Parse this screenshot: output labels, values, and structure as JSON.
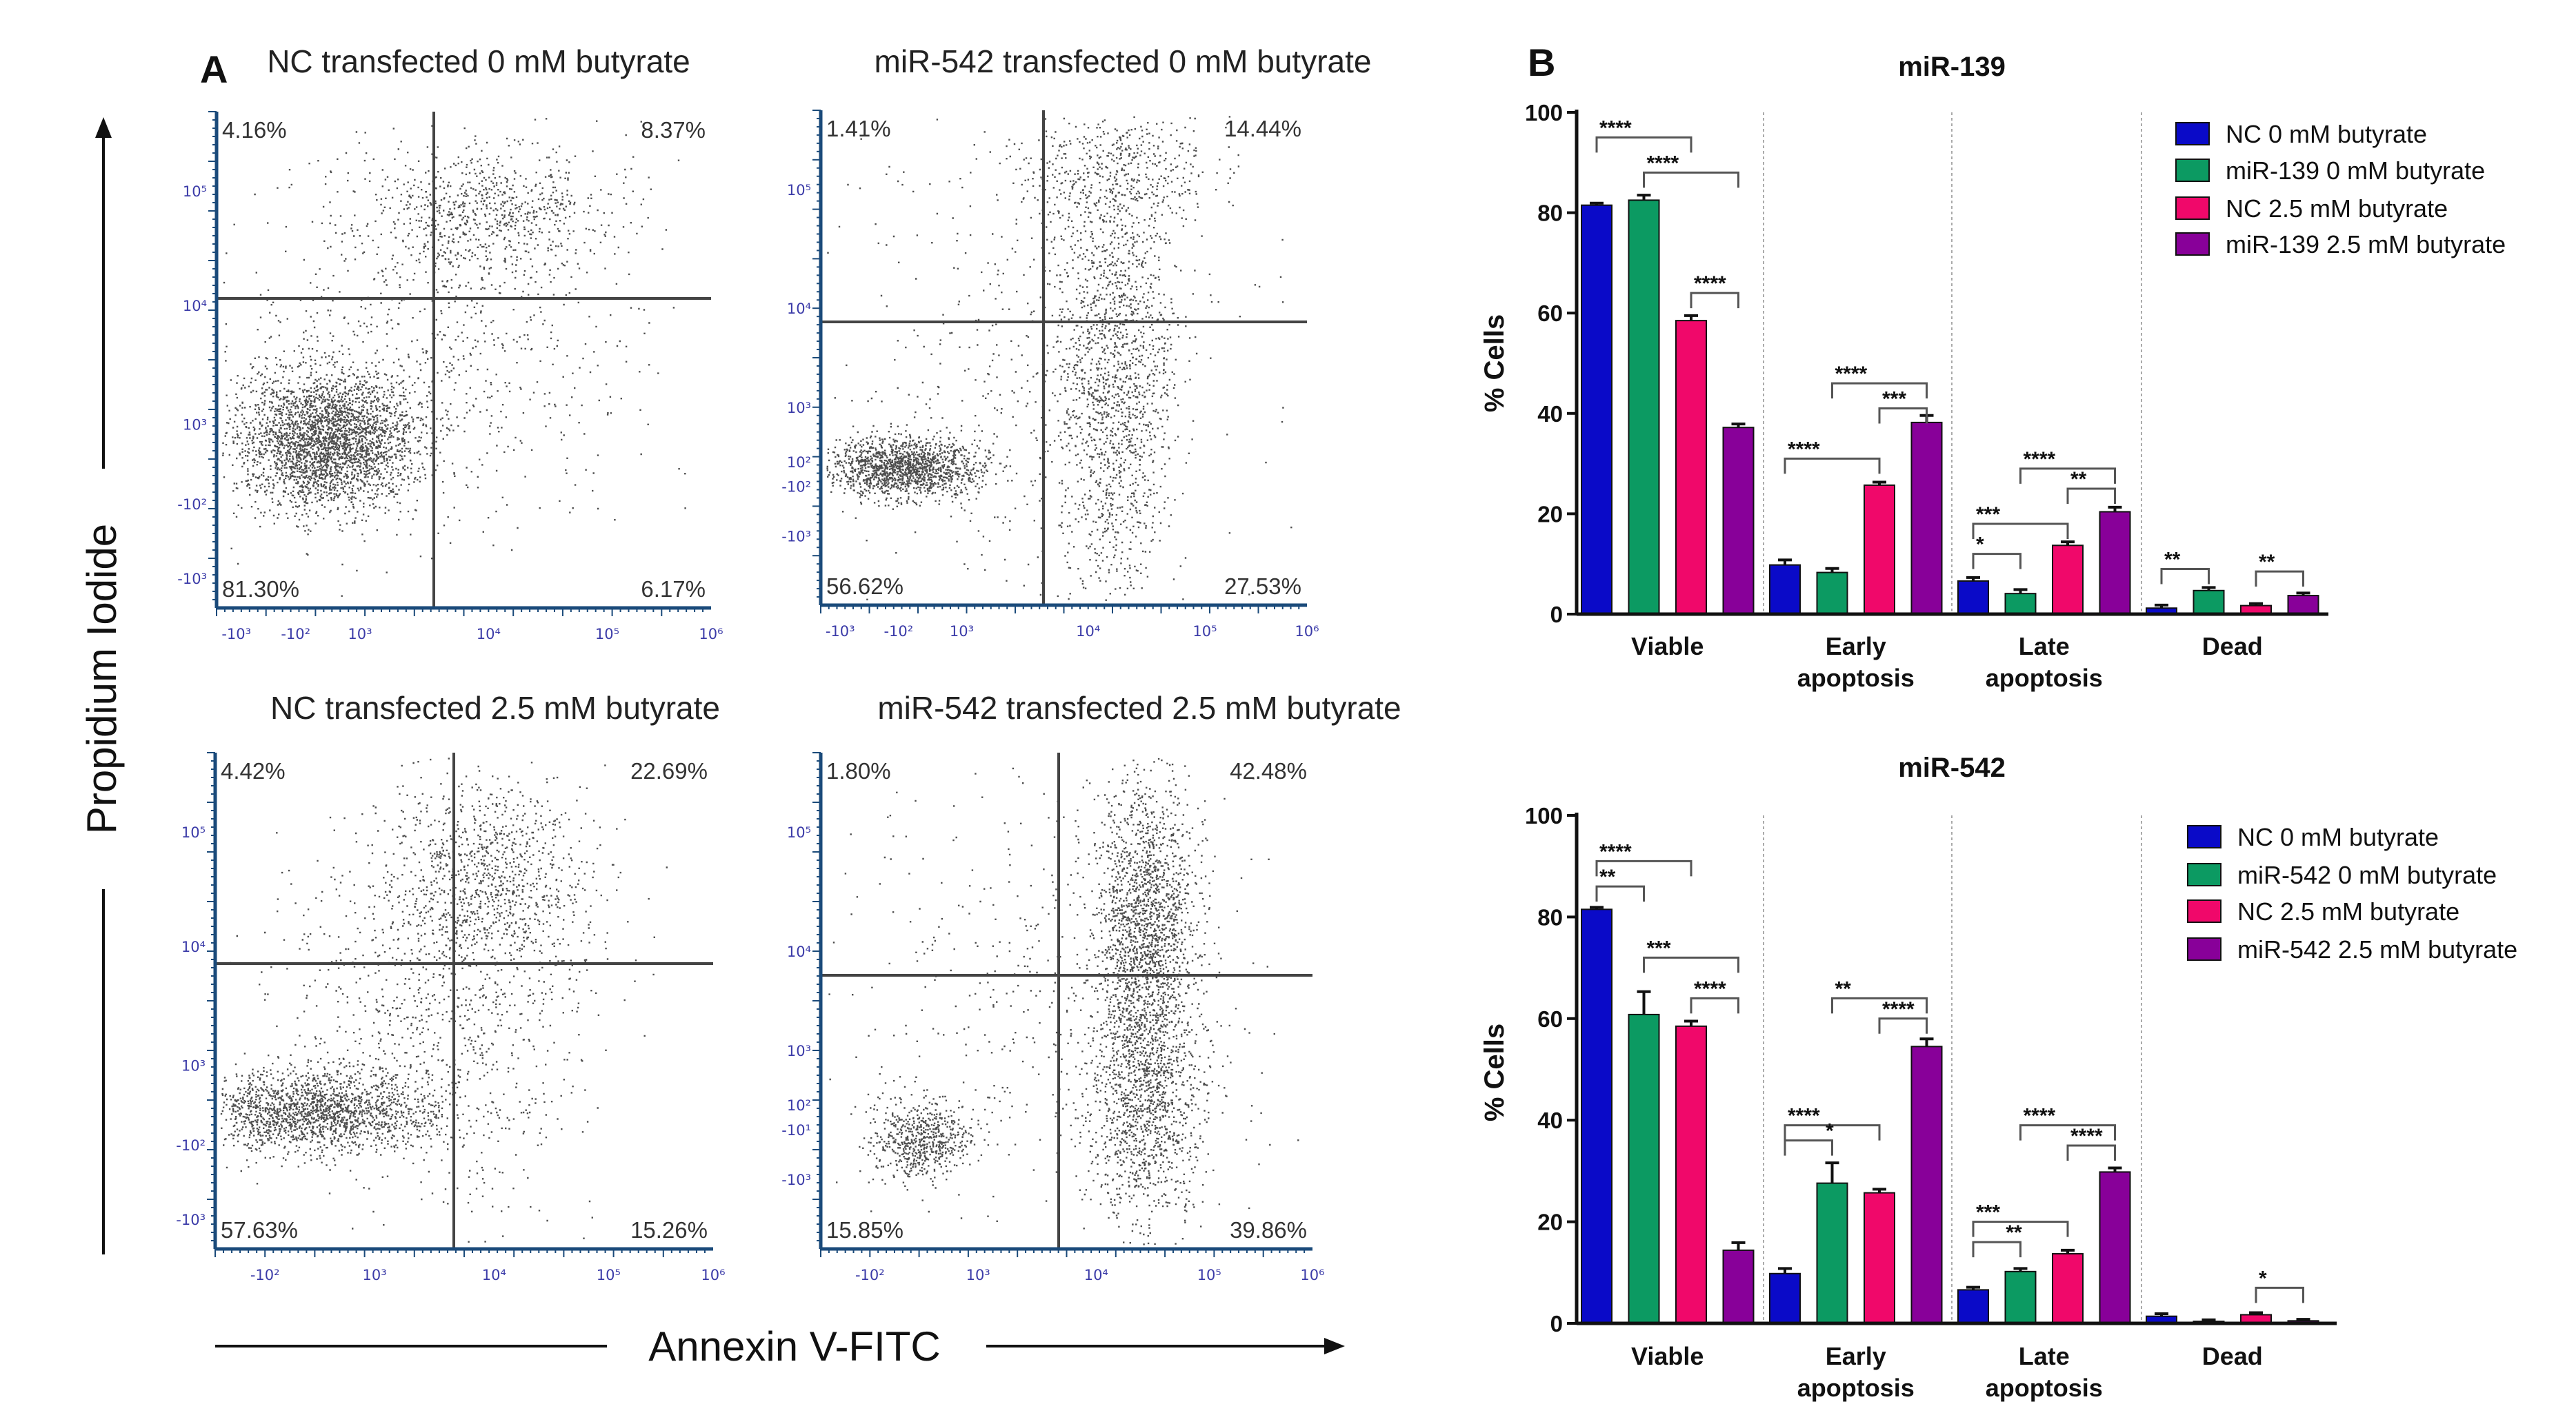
{
  "panel_a": {
    "label": "A",
    "y_axis_label": "Propidium Iodide",
    "x_axis_label": "Annexin V-FITC",
    "plots": [
      {
        "title": "NC transfected 0 mM butyrate",
        "ul": "4.16%",
        "ur": "8.37%",
        "ll": "81.30%",
        "lr": "6.17%",
        "x_ticks": [
          "-10³",
          "-10²",
          "10³",
          "10⁴",
          "10⁵",
          "10⁶"
        ],
        "y_ticks": [
          "10⁵",
          "10⁴",
          "10³",
          "-10²",
          "-10³"
        ]
      },
      {
        "title": "miR-542 transfected 0 mM butyrate",
        "ul": "1.41%",
        "ur": "14.44%",
        "ll": "56.62%",
        "lr": "27.53%",
        "x_ticks": [
          "-10³",
          "-10²",
          "10³",
          "10⁴",
          "10⁵",
          "10⁶"
        ],
        "y_ticks": [
          "10⁵",
          "10⁴",
          "10³",
          "10²",
          "-10²",
          "-10³"
        ]
      },
      {
        "title": "NC transfected 2.5 mM butyrate",
        "ul": "4.42%",
        "ur": "22.69%",
        "ll": "57.63%",
        "lr": "15.26%",
        "x_ticks": [
          "-10²",
          "10³",
          "10⁴",
          "10⁵",
          "10⁶"
        ],
        "y_ticks": [
          "10⁵",
          "10⁴",
          "10³",
          "-10²",
          "-10³"
        ]
      },
      {
        "title": "miR-542 transfected 2.5 mM butyrate",
        "ul": "1.80%",
        "ur": "42.48%",
        "ll": "15.85%",
        "lr": "39.86%",
        "x_ticks": [
          "-10²",
          "10³",
          "10⁴",
          "10⁵",
          "10⁶"
        ],
        "y_ticks": [
          "10⁵",
          "10⁴",
          "10³",
          "10²",
          "-10¹",
          "-10³"
        ]
      }
    ]
  },
  "panel_b_label": "B",
  "chart_data": [
    {
      "type": "bar",
      "title": "miR-139",
      "ylabel": "% Cells",
      "xlabel": "",
      "ylim": [
        0,
        100
      ],
      "yticks": [
        "0",
        "20",
        "40",
        "60",
        "80",
        "100"
      ],
      "categories": [
        [
          "Viable"
        ],
        [
          "Early",
          "apoptosis"
        ],
        [
          "Late",
          "apoptosis"
        ],
        [
          "Dead"
        ]
      ],
      "legend_position": "top-right",
      "series": [
        {
          "name": "NC 0 mM butyrate",
          "color": "#0a0ac8",
          "values": [
            81.5,
            9.8,
            6.6,
            1.2
          ],
          "errors": [
            0.4,
            1.0,
            0.7,
            0.6
          ]
        },
        {
          "name": "miR-139 0 mM butyrate",
          "color": "#0c9a62",
          "values": [
            82.5,
            8.3,
            4.1,
            4.7
          ],
          "errors": [
            1.0,
            0.8,
            0.8,
            0.6
          ]
        },
        {
          "name": "NC 2.5 mM butyrate",
          "color": "#f0086a",
          "values": [
            58.5,
            25.7,
            13.7,
            1.7
          ],
          "errors": [
            1.0,
            0.6,
            0.7,
            0.4
          ]
        },
        {
          "name": "miR-139 2.5 mM butyrate",
          "color": "#880099",
          "values": [
            37.2,
            38.2,
            20.4,
            3.7
          ],
          "errors": [
            0.7,
            1.4,
            0.9,
            0.5
          ]
        }
      ],
      "significance": [
        {
          "group": 0,
          "from": 0,
          "to": 2,
          "level": 95,
          "label": "****"
        },
        {
          "group": 0,
          "from": 1,
          "to": 3,
          "level": 88,
          "label": "****"
        },
        {
          "group": 0,
          "from": 2,
          "to": 3,
          "level": 64,
          "label": "****"
        },
        {
          "group": 1,
          "from": 1,
          "to": 3,
          "level": 46,
          "label": "****"
        },
        {
          "group": 1,
          "from": 2,
          "to": 3,
          "level": 41,
          "label": "***"
        },
        {
          "group": 1,
          "from": 0,
          "to": 2,
          "level": 31,
          "label": "****"
        },
        {
          "group": 2,
          "from": 1,
          "to": 3,
          "level": 29,
          "label": "****"
        },
        {
          "group": 2,
          "from": 2,
          "to": 3,
          "level": 25,
          "label": "**"
        },
        {
          "group": 2,
          "from": 0,
          "to": 2,
          "level": 18,
          "label": "***"
        },
        {
          "group": 2,
          "from": 0,
          "to": 1,
          "level": 12,
          "label": "*"
        },
        {
          "group": 3,
          "from": 0,
          "to": 1,
          "level": 9,
          "label": "**"
        },
        {
          "group": 3,
          "from": 2,
          "to": 3,
          "level": 8.5,
          "label": "**"
        }
      ]
    },
    {
      "type": "bar",
      "title": "miR-542",
      "ylabel": "% Cells",
      "xlabel": "",
      "ylim": [
        0,
        100
      ],
      "yticks": [
        "0",
        "20",
        "40",
        "60",
        "80",
        "100"
      ],
      "categories": [
        [
          "Viable"
        ],
        [
          "Early",
          "apoptosis"
        ],
        [
          "Late",
          "apoptosis"
        ],
        [
          "Dead"
        ]
      ],
      "legend_position": "top-right",
      "series": [
        {
          "name": "NC 0 mM butyrate",
          "color": "#0a0ac8",
          "values": [
            81.5,
            9.8,
            6.6,
            1.4
          ],
          "errors": [
            0.4,
            1.0,
            0.5,
            0.5
          ]
        },
        {
          "name": "miR-542 0 mM butyrate",
          "color": "#0c9a62",
          "values": [
            60.8,
            27.6,
            10.2,
            0.4
          ],
          "errors": [
            4.5,
            4.0,
            0.6,
            0.3
          ]
        },
        {
          "name": "NC 2.5 mM butyrate",
          "color": "#f0086a",
          "values": [
            58.5,
            25.7,
            13.7,
            1.7
          ],
          "errors": [
            1.0,
            0.7,
            0.7,
            0.4
          ]
        },
        {
          "name": "miR-542 2.5 mM butyrate",
          "color": "#880099",
          "values": [
            14.4,
            54.5,
            29.8,
            0.5
          ],
          "errors": [
            1.5,
            1.5,
            0.8,
            0.3
          ]
        }
      ],
      "significance": [
        {
          "group": 0,
          "from": 0,
          "to": 2,
          "level": 91,
          "label": "****"
        },
        {
          "group": 0,
          "from": 0,
          "to": 1,
          "level": 86,
          "label": "**"
        },
        {
          "group": 0,
          "from": 1,
          "to": 3,
          "level": 72,
          "label": "***"
        },
        {
          "group": 0,
          "from": 2,
          "to": 3,
          "level": 64,
          "label": "****"
        },
        {
          "group": 1,
          "from": 1,
          "to": 3,
          "level": 64,
          "label": "**"
        },
        {
          "group": 1,
          "from": 2,
          "to": 3,
          "level": 60,
          "label": "****"
        },
        {
          "group": 1,
          "from": 0,
          "to": 2,
          "level": 39,
          "label": "****"
        },
        {
          "group": 1,
          "from": 0,
          "to": 1,
          "level": 36,
          "label": "*"
        },
        {
          "group": 2,
          "from": 1,
          "to": 3,
          "level": 39,
          "label": "****"
        },
        {
          "group": 2,
          "from": 2,
          "to": 3,
          "level": 35,
          "label": "****"
        },
        {
          "group": 2,
          "from": 0,
          "to": 2,
          "level": 20,
          "label": "***"
        },
        {
          "group": 2,
          "from": 0,
          "to": 1,
          "level": 16,
          "label": "**"
        },
        {
          "group": 3,
          "from": 2,
          "to": 3,
          "level": 7,
          "label": "*"
        }
      ]
    }
  ]
}
